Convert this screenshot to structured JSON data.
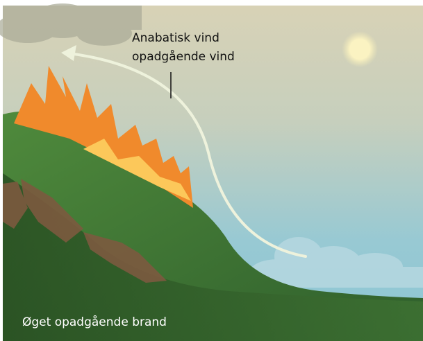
{
  "labels": {
    "wind_title": "Anabatisk vind",
    "wind_subtitle": "opadgående vind",
    "caption": "Øget opadgående brand"
  }
}
